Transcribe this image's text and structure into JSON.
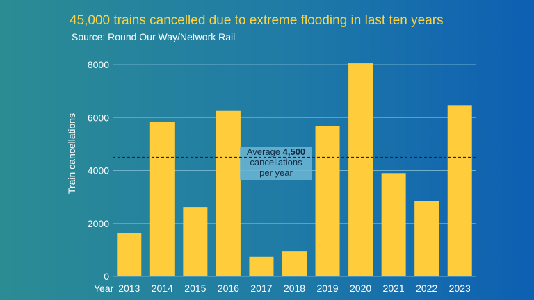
{
  "title": "45,000 trains cancelled due to extreme flooding in last ten years",
  "subtitle": "Source: Round Our Way/Network Rail",
  "colors": {
    "bar": "#ffcd3c",
    "title": "#ffd23f",
    "grid": "#6fb0cf",
    "avg_line": "#0f2a44",
    "avg_box": "#6cb6d4"
  },
  "chart_data": {
    "type": "bar",
    "title": "45,000 trains cancelled due to extreme flooding in last ten years",
    "subtitle": "Source: Round Our Way/Network Rail",
    "xlabel": "Year",
    "ylabel": "Train cancellations",
    "categories": [
      "2013",
      "2014",
      "2015",
      "2016",
      "2017",
      "2018",
      "2019",
      "2020",
      "2021",
      "2022",
      "2023"
    ],
    "values": [
      1650,
      5830,
      2620,
      6250,
      740,
      940,
      5680,
      8050,
      3900,
      2840,
      6470
    ],
    "ylim": [
      0,
      8000
    ],
    "yticks": [
      "0",
      "2000",
      "4000",
      "6000",
      "8000"
    ],
    "grid": true,
    "reference_line": {
      "value": 4500,
      "style": "dashed",
      "label_prefix": "Average ",
      "label_value": "4,500",
      "label_line2": "cancellations",
      "label_line3": "per year"
    }
  }
}
